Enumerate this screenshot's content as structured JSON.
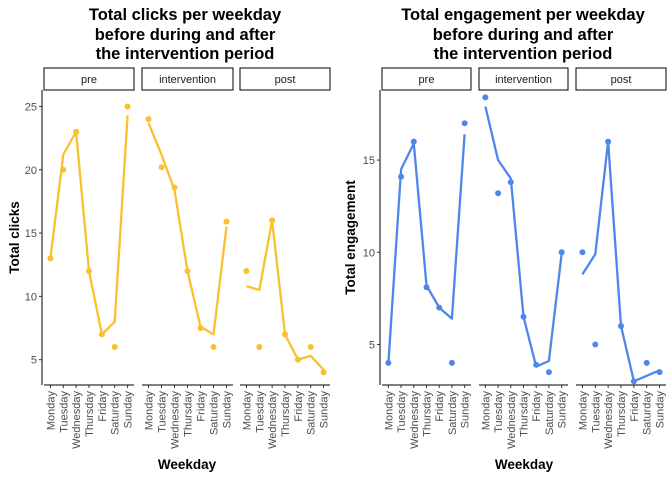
{
  "chart_data": [
    {
      "type": "scatter",
      "title": "Total clicks per weekday\nbefore during and after\nthe intervention period",
      "xlabel": "Weekday",
      "ylabel": "Total clicks",
      "color": "#FBC02D",
      "categories": [
        "Monday",
        "Tuesday",
        "Wednesday",
        "Thursday",
        "Friday",
        "Saturday",
        "Sunday"
      ],
      "yticks": [
        5,
        10,
        15,
        20,
        25
      ],
      "ylim": [
        3.0,
        26.3
      ],
      "facets": [
        {
          "name": "pre",
          "points": [
            13,
            20,
            23,
            12,
            7,
            6,
            25
          ],
          "line": [
            13,
            21.2,
            23,
            12,
            7,
            8,
            24.3
          ]
        },
        {
          "name": "intervention",
          "points": [
            24,
            20.2,
            18.6,
            12,
            7.5,
            6,
            15.9
          ],
          "line": [
            23.7,
            21.2,
            18.4,
            12,
            7.6,
            7,
            15.5
          ]
        },
        {
          "name": "post",
          "points": [
            12,
            6,
            16,
            7,
            5,
            6,
            4
          ],
          "line": [
            10.8,
            10.5,
            16,
            7,
            5,
            5.3,
            4.2
          ]
        }
      ]
    },
    {
      "type": "scatter",
      "title": "Total engagement per weekday\nbefore during and after\nthe intervention period",
      "xlabel": "Weekday",
      "ylabel": "Total engagement",
      "color": "#4F86EC",
      "categories": [
        "Monday",
        "Tuesday",
        "Wednesday",
        "Thursday",
        "Friday",
        "Saturday",
        "Sunday"
      ],
      "yticks": [
        5,
        10,
        15
      ],
      "ylim": [
        2.8,
        18.8
      ],
      "facets": [
        {
          "name": "pre",
          "points": [
            4,
            14.1,
            16,
            8.1,
            7,
            4,
            17
          ],
          "line": [
            4,
            14.5,
            15.9,
            8.2,
            7,
            6.4,
            16.4
          ]
        },
        {
          "name": "intervention",
          "points": [
            18.4,
            13.2,
            13.8,
            6.5,
            3.9,
            3.5,
            10
          ],
          "line": [
            17.9,
            15,
            14,
            6.5,
            3.8,
            4.1,
            9.9
          ]
        },
        {
          "name": "post",
          "points": [
            10,
            5,
            16,
            6,
            3,
            4,
            3.5
          ],
          "line": [
            8.8,
            9.9,
            16,
            6,
            3,
            3.3,
            3.6
          ]
        }
      ]
    }
  ]
}
